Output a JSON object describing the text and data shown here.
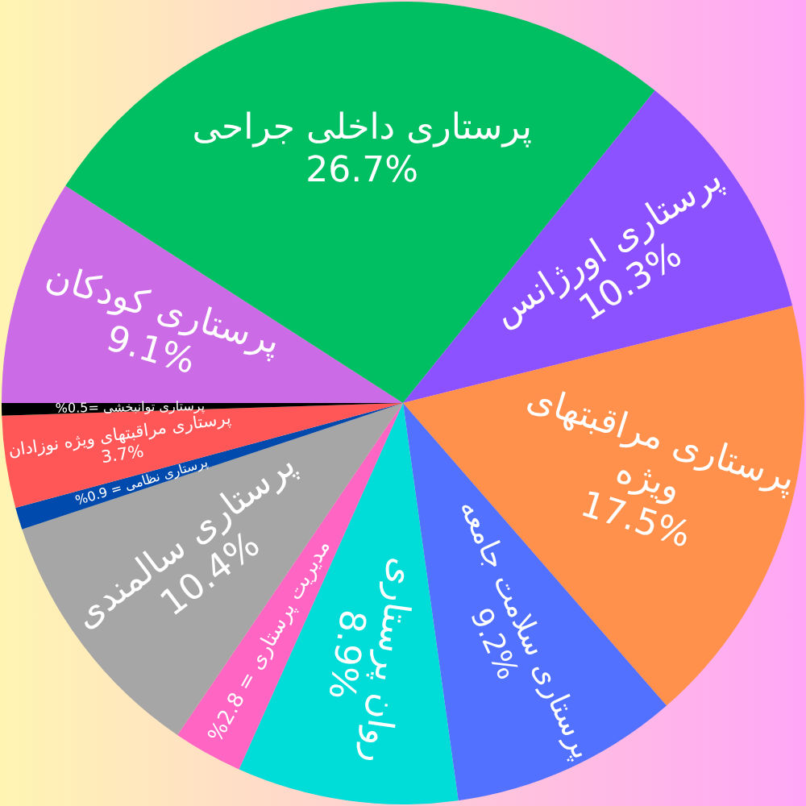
{
  "chart_data": {
    "type": "pie",
    "categories": [
      "پرستاری کودکان",
      "پرستاری داخلی جراحی",
      "پرستاری اورژانس",
      "پرستاری مراقبتهای\nویژه",
      "پرستاری سلامت جامعه",
      "روان پرستاری",
      "مدیریت پرستاری",
      "پرستاری سالمندی",
      "پرستاری نظامی",
      "پرستاری مراقبتهای ویژه نوزادان",
      "پرستاری توانبخشی"
    ],
    "values": [
      9.1,
      26.7,
      10.3,
      17.5,
      9.2,
      8.9,
      2.8,
      10.4,
      0.9,
      3.7,
      0.5
    ],
    "value_labels": [
      "9.1%",
      "26.7%",
      "10.3%",
      "17.5%",
      "9.2%",
      "8.9%",
      "= 2.8%",
      "10.4%",
      "= 0.9%",
      "3.7%",
      "=0.5%"
    ],
    "colors": [
      "#cb6ce6",
      "#00bf63",
      "#8c52ff",
      "#ff914d",
      "#5271ff",
      "#00ddd9",
      "#ff66c4",
      "#a6a6a6",
      "#004aad",
      "#ff5757",
      "#000000"
    ]
  }
}
